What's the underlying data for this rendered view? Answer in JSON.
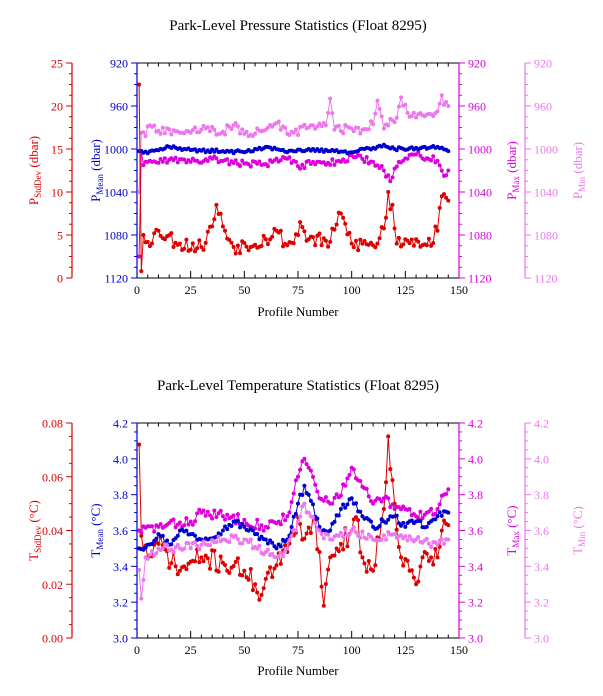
{
  "chart_data": [
    {
      "type": "line",
      "title": "Park-Level Pressure Statistics (Float 8295)",
      "xlabel": "Profile Number",
      "xlim": [
        0,
        150
      ],
      "x_ticks": [
        "0",
        "25",
        "50",
        "75",
        "100",
        "125",
        "150"
      ],
      "grid": false,
      "legend": "none",
      "axes": [
        {
          "id": "stddev",
          "side": "outer-left",
          "label_main": "P",
          "label_sub": "StdDev",
          "label_unit": " (dbar)",
          "color": "#dd0000",
          "range": [
            0,
            25
          ],
          "inverted": false,
          "ticks": [
            "0",
            "5",
            "10",
            "15",
            "20",
            "25"
          ]
        },
        {
          "id": "mean",
          "side": "inner-left",
          "label_main": "P",
          "label_sub": "Mean",
          "label_unit": " (dbar)",
          "color": "#0000cc",
          "range": [
            920,
            1120
          ],
          "inverted": true,
          "ticks": [
            "920",
            "960",
            "1000",
            "1040",
            "1080",
            "1120"
          ]
        },
        {
          "id": "max",
          "side": "inner-right",
          "label_main": "P",
          "label_sub": "Max",
          "label_unit": " (dbar)",
          "color": "#dd00dd",
          "range": [
            920,
            1120
          ],
          "inverted": true,
          "ticks": [
            "920",
            "960",
            "1000",
            "1040",
            "1080",
            "1120"
          ]
        },
        {
          "id": "min",
          "side": "outer-right",
          "label_main": "P",
          "label_sub": "Min",
          "label_unit": " (dbar)",
          "color": "#ee77ee",
          "range": [
            920,
            1120
          ],
          "inverted": true,
          "ticks": [
            "920",
            "960",
            "1000",
            "1040",
            "1080",
            "1120"
          ]
        }
      ],
      "series": [
        {
          "axis": "min",
          "color": "#ee77ee",
          "anchors": [
            [
              1,
              1040
            ],
            [
              2,
              985
            ],
            [
              4,
              988
            ],
            [
              5,
              979
            ],
            [
              10,
              983
            ],
            [
              20,
              985
            ],
            [
              30,
              982
            ],
            [
              40,
              984
            ],
            [
              45,
              978
            ],
            [
              50,
              986
            ],
            [
              60,
              982
            ],
            [
              65,
              976
            ],
            [
              70,
              986
            ],
            [
              80,
              980
            ],
            [
              88,
              978
            ],
            [
              90,
              953
            ],
            [
              92,
              982
            ],
            [
              100,
              981
            ],
            [
              105,
              982
            ],
            [
              110,
              977
            ],
            [
              112,
              955
            ],
            [
              115,
              981
            ],
            [
              118,
              972
            ],
            [
              120,
              975
            ],
            [
              123,
              952
            ],
            [
              127,
              970
            ],
            [
              135,
              968
            ],
            [
              140,
              965
            ],
            [
              142,
              950
            ],
            [
              143,
              959
            ],
            [
              145,
              960
            ]
          ],
          "noise": 4,
          "seed": 11
        },
        {
          "axis": "max",
          "color": "#dd00dd",
          "anchors": [
            [
              1,
              1100
            ],
            [
              2,
              1002
            ],
            [
              3,
              1015
            ],
            [
              5,
              1012
            ],
            [
              15,
              1010
            ],
            [
              25,
              1012
            ],
            [
              35,
              1009
            ],
            [
              45,
              1013
            ],
            [
              60,
              1014
            ],
            [
              70,
              1009
            ],
            [
              75,
              1016
            ],
            [
              85,
              1012
            ],
            [
              95,
              1012
            ],
            [
              100,
              1006
            ],
            [
              110,
              1012
            ],
            [
              115,
              1020
            ],
            [
              118,
              1030
            ],
            [
              122,
              1012
            ],
            [
              130,
              1005
            ],
            [
              140,
              1011
            ],
            [
              143,
              1025
            ],
            [
              145,
              1020
            ]
          ],
          "noise": 3,
          "seed": 23
        },
        {
          "axis": "mean",
          "color": "#0000cc",
          "anchors": [
            [
              1,
              1002
            ],
            [
              5,
              1004
            ],
            [
              15,
              998
            ],
            [
              25,
              1001
            ],
            [
              40,
              1002
            ],
            [
              50,
              1003
            ],
            [
              60,
              998
            ],
            [
              70,
              1003
            ],
            [
              80,
              1000
            ],
            [
              90,
              1002
            ],
            [
              100,
              1003
            ],
            [
              110,
              999
            ],
            [
              115,
              996
            ],
            [
              120,
              1000
            ],
            [
              130,
              999
            ],
            [
              140,
              998
            ],
            [
              145,
              1002
            ]
          ],
          "noise": 1.5,
          "seed": 37
        },
        {
          "axis": "stddev",
          "color": "#dd0000",
          "anchors": [
            [
              1,
              22.5
            ],
            [
              2,
              0.8
            ],
            [
              3,
              5
            ],
            [
              5,
              4.2
            ],
            [
              10,
              5.5
            ],
            [
              20,
              4
            ],
            [
              30,
              3.6
            ],
            [
              35,
              6
            ],
            [
              37,
              8.5
            ],
            [
              40,
              6
            ],
            [
              45,
              3.6
            ],
            [
              60,
              4.5
            ],
            [
              65,
              5.5
            ],
            [
              70,
              3.8
            ],
            [
              75,
              5
            ],
            [
              76,
              6.5
            ],
            [
              80,
              4.5
            ],
            [
              90,
              4.2
            ],
            [
              95,
              7.5
            ],
            [
              100,
              4
            ],
            [
              105,
              4
            ],
            [
              110,
              3.8
            ],
            [
              112,
              4
            ],
            [
              116,
              7
            ],
            [
              117,
              10
            ],
            [
              118,
              8
            ],
            [
              119,
              8.5
            ],
            [
              121,
              4
            ],
            [
              125,
              4.5
            ],
            [
              130,
              4.5
            ],
            [
              135,
              3.8
            ],
            [
              140,
              5.5
            ],
            [
              142,
              9.5
            ],
            [
              145,
              9
            ]
          ],
          "noise": 0.9,
          "seed": 53
        }
      ]
    },
    {
      "type": "line",
      "title": "Park-Level Temperature Statistics (Float 8295)",
      "xlabel": "Profile Number",
      "xlim": [
        0,
        150
      ],
      "x_ticks": [
        "0",
        "25",
        "50",
        "75",
        "100",
        "125",
        "150"
      ],
      "grid": false,
      "legend": "none",
      "axes": [
        {
          "id": "stddev",
          "side": "outer-left",
          "label_main": "T",
          "label_sub": "StdDev",
          "label_unit": " (°C)",
          "color": "#dd0000",
          "range": [
            0,
            0.08
          ],
          "inverted": false,
          "ticks": [
            "0.00",
            "0.02",
            "0.04",
            "0.06",
            "0.08"
          ]
        },
        {
          "id": "mean",
          "side": "inner-left",
          "label_main": "T",
          "label_sub": "Mean",
          "label_unit": " (°C)",
          "color": "#0000cc",
          "range": [
            3.0,
            4.2
          ],
          "inverted": false,
          "ticks": [
            "3.0",
            "3.2",
            "3.4",
            "3.6",
            "3.8",
            "4.0",
            "4.2"
          ]
        },
        {
          "id": "max",
          "side": "inner-right",
          "label_main": "T",
          "label_sub": "Max",
          "label_unit": " (°C)",
          "color": "#dd00dd",
          "range": [
            3.0,
            4.2
          ],
          "inverted": false,
          "ticks": [
            "3.0",
            "3.2",
            "3.4",
            "3.6",
            "3.8",
            "4.0",
            "4.2"
          ]
        },
        {
          "id": "min",
          "side": "outer-right",
          "label_main": "T",
          "label_sub": "Min",
          "label_unit": " (°C)",
          "color": "#ee77ee",
          "range": [
            3.0,
            4.2
          ],
          "inverted": false,
          "ticks": [
            "3.0",
            "3.2",
            "3.4",
            "3.6",
            "3.8",
            "4.0",
            "4.2"
          ]
        }
      ],
      "series": [
        {
          "axis": "stddev",
          "color": "#dd0000",
          "anchors": [
            [
              1,
              0.072
            ],
            [
              2,
              0.038
            ],
            [
              5,
              0.03
            ],
            [
              10,
              0.035
            ],
            [
              20,
              0.025
            ],
            [
              30,
              0.03
            ],
            [
              40,
              0.028
            ],
            [
              50,
              0.025
            ],
            [
              55,
              0.02
            ],
            [
              58,
              0.016
            ],
            [
              60,
              0.022
            ],
            [
              65,
              0.027
            ],
            [
              70,
              0.032
            ],
            [
              75,
              0.045
            ],
            [
              78,
              0.037
            ],
            [
              82,
              0.045
            ],
            [
              85,
              0.032
            ],
            [
              87,
              0.012
            ],
            [
              90,
              0.03
            ],
            [
              95,
              0.035
            ],
            [
              100,
              0.04
            ],
            [
              102,
              0.045
            ],
            [
              105,
              0.03
            ],
            [
              110,
              0.025
            ],
            [
              115,
              0.048
            ],
            [
              117,
              0.075
            ],
            [
              120,
              0.05
            ],
            [
              123,
              0.03
            ],
            [
              127,
              0.025
            ],
            [
              130,
              0.02
            ],
            [
              133,
              0.03
            ],
            [
              137,
              0.03
            ],
            [
              140,
              0.03
            ],
            [
              142,
              0.04
            ],
            [
              145,
              0.042
            ]
          ],
          "noise": 0.004,
          "seed": 71
        },
        {
          "axis": "max",
          "color": "#dd00dd",
          "anchors": [
            [
              1,
              3.6
            ],
            [
              10,
              3.62
            ],
            [
              25,
              3.65
            ],
            [
              30,
              3.7
            ],
            [
              40,
              3.68
            ],
            [
              50,
              3.66
            ],
            [
              60,
              3.62
            ],
            [
              70,
              3.68
            ],
            [
              75,
              3.9
            ],
            [
              78,
              4.0
            ],
            [
              80,
              3.95
            ],
            [
              85,
              3.78
            ],
            [
              90,
              3.75
            ],
            [
              97,
              3.85
            ],
            [
              100,
              3.95
            ],
            [
              103,
              3.88
            ],
            [
              110,
              3.75
            ],
            [
              115,
              3.78
            ],
            [
              120,
              3.72
            ],
            [
              125,
              3.72
            ],
            [
              130,
              3.68
            ],
            [
              135,
              3.7
            ],
            [
              140,
              3.72
            ],
            [
              143,
              3.8
            ],
            [
              145,
              3.83
            ]
          ],
          "noise": 0.03,
          "seed": 83
        },
        {
          "axis": "mean",
          "color": "#0000cc",
          "anchors": [
            [
              1,
              3.5
            ],
            [
              5,
              3.52
            ],
            [
              10,
              3.58
            ],
            [
              15,
              3.52
            ],
            [
              20,
              3.6
            ],
            [
              25,
              3.58
            ],
            [
              30,
              3.55
            ],
            [
              40,
              3.6
            ],
            [
              45,
              3.65
            ],
            [
              50,
              3.62
            ],
            [
              55,
              3.58
            ],
            [
              60,
              3.55
            ],
            [
              65,
              3.5
            ],
            [
              70,
              3.55
            ],
            [
              75,
              3.75
            ],
            [
              78,
              3.85
            ],
            [
              80,
              3.8
            ],
            [
              85,
              3.62
            ],
            [
              90,
              3.6
            ],
            [
              95,
              3.72
            ],
            [
              100,
              3.78
            ],
            [
              105,
              3.68
            ],
            [
              110,
              3.62
            ],
            [
              115,
              3.65
            ],
            [
              120,
              3.68
            ],
            [
              125,
              3.62
            ],
            [
              130,
              3.65
            ],
            [
              135,
              3.62
            ],
            [
              140,
              3.68
            ],
            [
              145,
              3.7
            ]
          ],
          "noise": 0.02,
          "seed": 97
        },
        {
          "axis": "min",
          "color": "#ee77ee",
          "anchors": [
            [
              1,
              3.38
            ],
            [
              2,
              3.22
            ],
            [
              4,
              3.45
            ],
            [
              10,
              3.5
            ],
            [
              20,
              3.5
            ],
            [
              30,
              3.52
            ],
            [
              40,
              3.55
            ],
            [
              50,
              3.55
            ],
            [
              60,
              3.48
            ],
            [
              65,
              3.45
            ],
            [
              70,
              3.5
            ],
            [
              75,
              3.65
            ],
            [
              78,
              3.75
            ],
            [
              80,
              3.7
            ],
            [
              85,
              3.6
            ],
            [
              90,
              3.55
            ],
            [
              100,
              3.6
            ],
            [
              110,
              3.55
            ],
            [
              120,
              3.58
            ],
            [
              130,
              3.55
            ],
            [
              140,
              3.52
            ],
            [
              145,
              3.55
            ]
          ],
          "noise": 0.025,
          "seed": 109
        }
      ]
    }
  ]
}
